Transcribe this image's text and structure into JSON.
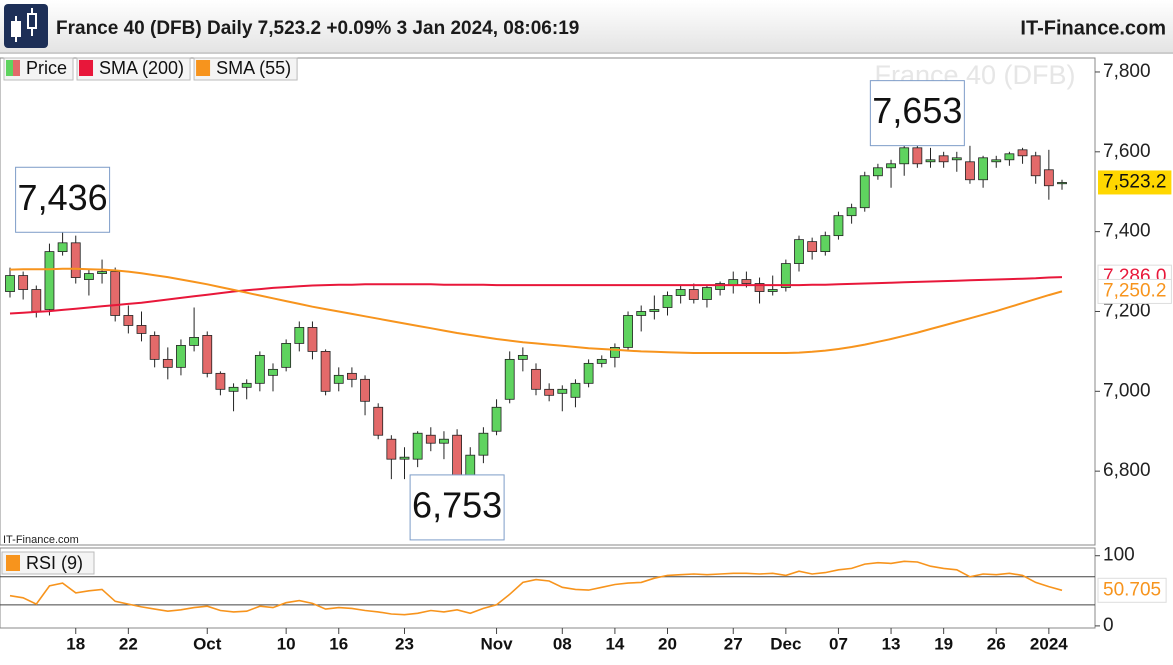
{
  "header": {
    "title": "France 40 (DFB) Daily 7,523.2 +0.09% 3 Jan 2024, 08:06:19",
    "site": "IT-Finance.com"
  },
  "chart_data": [
    {
      "type": "candlestick",
      "watermark": "France 40 (DFB)",
      "source": "IT-Finance.com",
      "categories": [
        null,
        null,
        null,
        null,
        null,
        "18",
        null,
        null,
        null,
        "22",
        null,
        null,
        null,
        null,
        null,
        "Oct",
        null,
        null,
        null,
        null,
        null,
        "10",
        null,
        null,
        null,
        "16",
        null,
        null,
        null,
        null,
        "23",
        null,
        null,
        null,
        null,
        null,
        null,
        "Nov",
        null,
        null,
        null,
        null,
        "08",
        null,
        null,
        null,
        "14",
        null,
        null,
        null,
        "20",
        null,
        null,
        null,
        null,
        "27",
        null,
        null,
        null,
        "Dec",
        null,
        null,
        null,
        "07",
        null,
        null,
        null,
        "13",
        null,
        null,
        null,
        "19",
        null,
        null,
        null,
        "26",
        null,
        null,
        null,
        "2024",
        null
      ],
      "series": [
        {
          "name": "Price",
          "up_color": "#5fd35f",
          "down_color": "#e36a6a",
          "open": [
            7250,
            7290,
            7255,
            7205,
            7350,
            7372,
            7280,
            7295,
            7300,
            7190,
            7165,
            7140,
            7080,
            7060,
            7115,
            7140,
            7045,
            7000,
            7010,
            7020,
            7040,
            7060,
            7120,
            7160,
            7100,
            7020,
            7045,
            7030,
            6960,
            6880,
            6830,
            6830,
            6890,
            6870,
            6890,
            6780,
            6840,
            6900,
            6980,
            7080,
            7055,
            7005,
            6995,
            6985,
            7020,
            7070,
            7085,
            7110,
            7190,
            7200,
            7210,
            7240,
            7255,
            7230,
            7255,
            7265,
            7280,
            7270,
            7250,
            7260,
            7320,
            7375,
            7350,
            7390,
            7440,
            7460,
            7540,
            7560,
            7570,
            7610,
            7575,
            7590,
            7580,
            7575,
            7530,
            7575,
            7580,
            7605,
            7590,
            7555,
            7520
          ],
          "high": [
            7310,
            7300,
            7265,
            7370,
            7436,
            7390,
            7305,
            7330,
            7310,
            7215,
            7200,
            7150,
            7110,
            7130,
            7210,
            7150,
            7050,
            7020,
            7030,
            7100,
            7070,
            7130,
            7175,
            7175,
            7105,
            7060,
            7060,
            7040,
            6970,
            6890,
            6860,
            6900,
            6910,
            6900,
            6905,
            6860,
            6910,
            6980,
            7100,
            7110,
            7070,
            7020,
            7015,
            7030,
            7080,
            7090,
            7120,
            7200,
            7215,
            7240,
            7250,
            7265,
            7270,
            7265,
            7275,
            7300,
            7300,
            7285,
            7290,
            7330,
            7390,
            7385,
            7400,
            7450,
            7470,
            7550,
            7570,
            7580,
            7615,
            7653,
            7610,
            7600,
            7600,
            7615,
            7590,
            7590,
            7600,
            7610,
            7600,
            7605,
            7530
          ],
          "low": [
            7235,
            7230,
            7185,
            7190,
            7340,
            7270,
            7240,
            7270,
            7175,
            7145,
            7125,
            7060,
            7030,
            7040,
            7100,
            7035,
            6990,
            6950,
            6980,
            7000,
            7000,
            7050,
            7100,
            7080,
            6990,
            7000,
            7010,
            6940,
            6880,
            6780,
            6780,
            6810,
            6850,
            6830,
            6753,
            6770,
            6820,
            6890,
            6970,
            7050,
            6990,
            6975,
            6950,
            6960,
            7010,
            7060,
            7060,
            7100,
            7150,
            7180,
            7190,
            7220,
            7220,
            7210,
            7240,
            7245,
            7260,
            7220,
            7240,
            7250,
            7300,
            7330,
            7340,
            7380,
            7420,
            7450,
            7530,
            7510,
            7540,
            7560,
            7560,
            7560,
            7550,
            7520,
            7510,
            7560,
            7565,
            7570,
            7520,
            7480,
            7505
          ],
          "close": [
            7290,
            7255,
            7200,
            7350,
            7372,
            7285,
            7295,
            7300,
            7190,
            7165,
            7145,
            7080,
            7060,
            7115,
            7135,
            7045,
            7005,
            7010,
            7020,
            7090,
            7055,
            7120,
            7160,
            7100,
            7000,
            7040,
            7030,
            6975,
            6890,
            6830,
            6835,
            6895,
            6870,
            6880,
            6780,
            6840,
            6895,
            6960,
            7080,
            7090,
            7005,
            6990,
            7005,
            7020,
            7070,
            7080,
            7110,
            7190,
            7200,
            7205,
            7240,
            7255,
            7230,
            7260,
            7270,
            7280,
            7270,
            7250,
            7255,
            7320,
            7380,
            7350,
            7390,
            7440,
            7460,
            7540,
            7560,
            7570,
            7610,
            7570,
            7580,
            7575,
            7585,
            7530,
            7585,
            7580,
            7595,
            7590,
            7540,
            7515,
            7523.2
          ],
          "last_label": "7,523.2"
        },
        {
          "name": "SMA (200)",
          "color": "#e8173a",
          "last_label": "7,286.0",
          "values": [
            7195,
            7197,
            7199,
            7201,
            7204,
            7207,
            7210,
            7213,
            7216,
            7219,
            7222,
            7226,
            7230,
            7234,
            7238,
            7242,
            7246,
            7250,
            7253,
            7256,
            7259,
            7261,
            7263,
            7265,
            7266,
            7267,
            7267,
            7268,
            7268,
            7268,
            7268,
            7268,
            7268,
            7267,
            7267,
            7267,
            7267,
            7266,
            7266,
            7266,
            7266,
            7266,
            7266,
            7266,
            7266,
            7266,
            7266,
            7266,
            7266,
            7266,
            7266,
            7266,
            7266,
            7266,
            7266,
            7266,
            7266,
            7266,
            7266,
            7266,
            7266,
            7267,
            7267,
            7268,
            7269,
            7270,
            7271,
            7272,
            7273,
            7274,
            7275,
            7276,
            7277,
            7278,
            7279,
            7280,
            7281,
            7282,
            7283,
            7285,
            7286
          ]
        },
        {
          "name": "SMA (55)",
          "color": "#f7941d",
          "last_label": "7,250.2",
          "values": [
            7305,
            7306,
            7306,
            7306,
            7307,
            7307,
            7306,
            7305,
            7303,
            7300,
            7296,
            7291,
            7286,
            7280,
            7274,
            7268,
            7261,
            7254,
            7247,
            7240,
            7233,
            7226,
            7219,
            7212,
            7206,
            7200,
            7194,
            7188,
            7182,
            7176,
            7170,
            7164,
            7158,
            7152,
            7146,
            7141,
            7136,
            7131,
            7127,
            7123,
            7120,
            7117,
            7114,
            7111,
            7108,
            7106,
            7104,
            7102,
            7100,
            7099,
            7098,
            7097,
            7096,
            7096,
            7096,
            7096,
            7096,
            7096,
            7096,
            7096,
            7097,
            7099,
            7102,
            7106,
            7111,
            7117,
            7124,
            7131,
            7139,
            7147,
            7156,
            7165,
            7174,
            7183,
            7192,
            7201,
            7211,
            7221,
            7231,
            7241,
            7250.2
          ]
        }
      ],
      "annotations": [
        {
          "value": 7436,
          "label": "7,436"
        },
        {
          "value": 7653,
          "label": "7,653"
        },
        {
          "value": 6753,
          "label": "6,753"
        }
      ],
      "ylim": [
        6615,
        7835
      ],
      "yticks": [
        {
          "value": 6800,
          "label": "6,800"
        },
        {
          "value": 7000,
          "label": "7,000"
        },
        {
          "value": 7200,
          "label": "7,200"
        },
        {
          "value": 7400,
          "label": "7,400"
        },
        {
          "value": 7600,
          "label": "7,600"
        },
        {
          "value": 7800,
          "label": "7,800"
        }
      ]
    },
    {
      "type": "line",
      "series": [
        {
          "name": "RSI (9)",
          "color": "#f7941d",
          "last_label": "50.705",
          "values": [
            43,
            40,
            31,
            57,
            61,
            47,
            50,
            52,
            35,
            31,
            27,
            24,
            21,
            23,
            26,
            28,
            22,
            20,
            21,
            28,
            26,
            33,
            36,
            32,
            24,
            26,
            25,
            22,
            20,
            17,
            16,
            18,
            22,
            20,
            23,
            18,
            25,
            30,
            45,
            62,
            66,
            64,
            55,
            52,
            51,
            55,
            59,
            61,
            62,
            68,
            72,
            73,
            74,
            73,
            74,
            75,
            75,
            74,
            75,
            72,
            78,
            74,
            76,
            80,
            82,
            88,
            90,
            89,
            92,
            91,
            85,
            82,
            80,
            70,
            74,
            73,
            75,
            72,
            62,
            56,
            50.705
          ]
        }
      ],
      "levels": [
        30,
        70
      ],
      "ylim": [
        -3,
        111
      ],
      "yticks": [
        0,
        100
      ]
    }
  ]
}
